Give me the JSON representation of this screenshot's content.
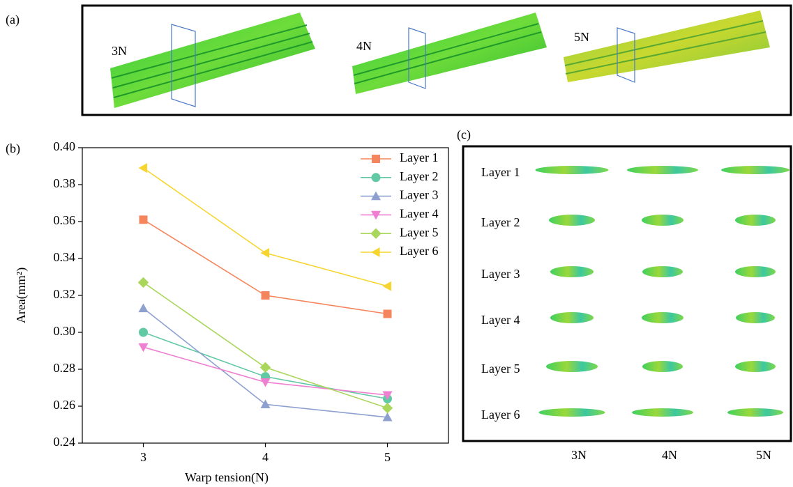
{
  "panel_a": {
    "label": "(a)",
    "specimens": [
      "3N",
      "4N",
      "5N"
    ]
  },
  "chart_data": {
    "type": "line",
    "panel_label": "(b)",
    "x_label": "Warp tension(N)",
    "y_label": "Area(mm²)",
    "x": [
      3,
      4,
      5
    ],
    "xlim": [
      2.5,
      5.5
    ],
    "xticks": [
      3,
      4,
      5
    ],
    "ylim": [
      0.24,
      0.4
    ],
    "yticks": [
      0.24,
      0.26,
      0.28,
      {
        "value": 0.3,
        "label": "0.30"
      },
      0.32,
      0.34,
      0.36,
      0.38,
      {
        "value": 0.4,
        "label": "0.40"
      }
    ],
    "legend": "upper right",
    "series": [
      {
        "name": "Layer 1",
        "color": "#f5855c",
        "marker": "square",
        "values": [
          0.361,
          0.32,
          0.31
        ]
      },
      {
        "name": "Layer 2",
        "color": "#62c9a5",
        "marker": "circle",
        "values": [
          0.3,
          0.276,
          0.264
        ]
      },
      {
        "name": "Layer 3",
        "color": "#8ea0cf",
        "marker": "triangle-up",
        "values": [
          0.313,
          0.261,
          0.254
        ]
      },
      {
        "name": "Layer 4",
        "color": "#ef7fd0",
        "marker": "triangle-down",
        "values": [
          0.292,
          0.273,
          0.266
        ]
      },
      {
        "name": "Layer 5",
        "color": "#a9d65b",
        "marker": "diamond",
        "values": [
          0.327,
          0.281,
          0.259
        ]
      },
      {
        "name": "Layer 6",
        "color": "#f7d530",
        "marker": "triangle-left",
        "values": [
          0.389,
          0.343,
          0.325
        ]
      }
    ]
  },
  "panel_c": {
    "label": "(c)",
    "rows": [
      "Layer 1",
      "Layer 2",
      "Layer 3",
      "Layer 4",
      "Layer 5",
      "Layer 6"
    ],
    "columns": [
      "3N",
      "4N",
      "5N"
    ]
  }
}
